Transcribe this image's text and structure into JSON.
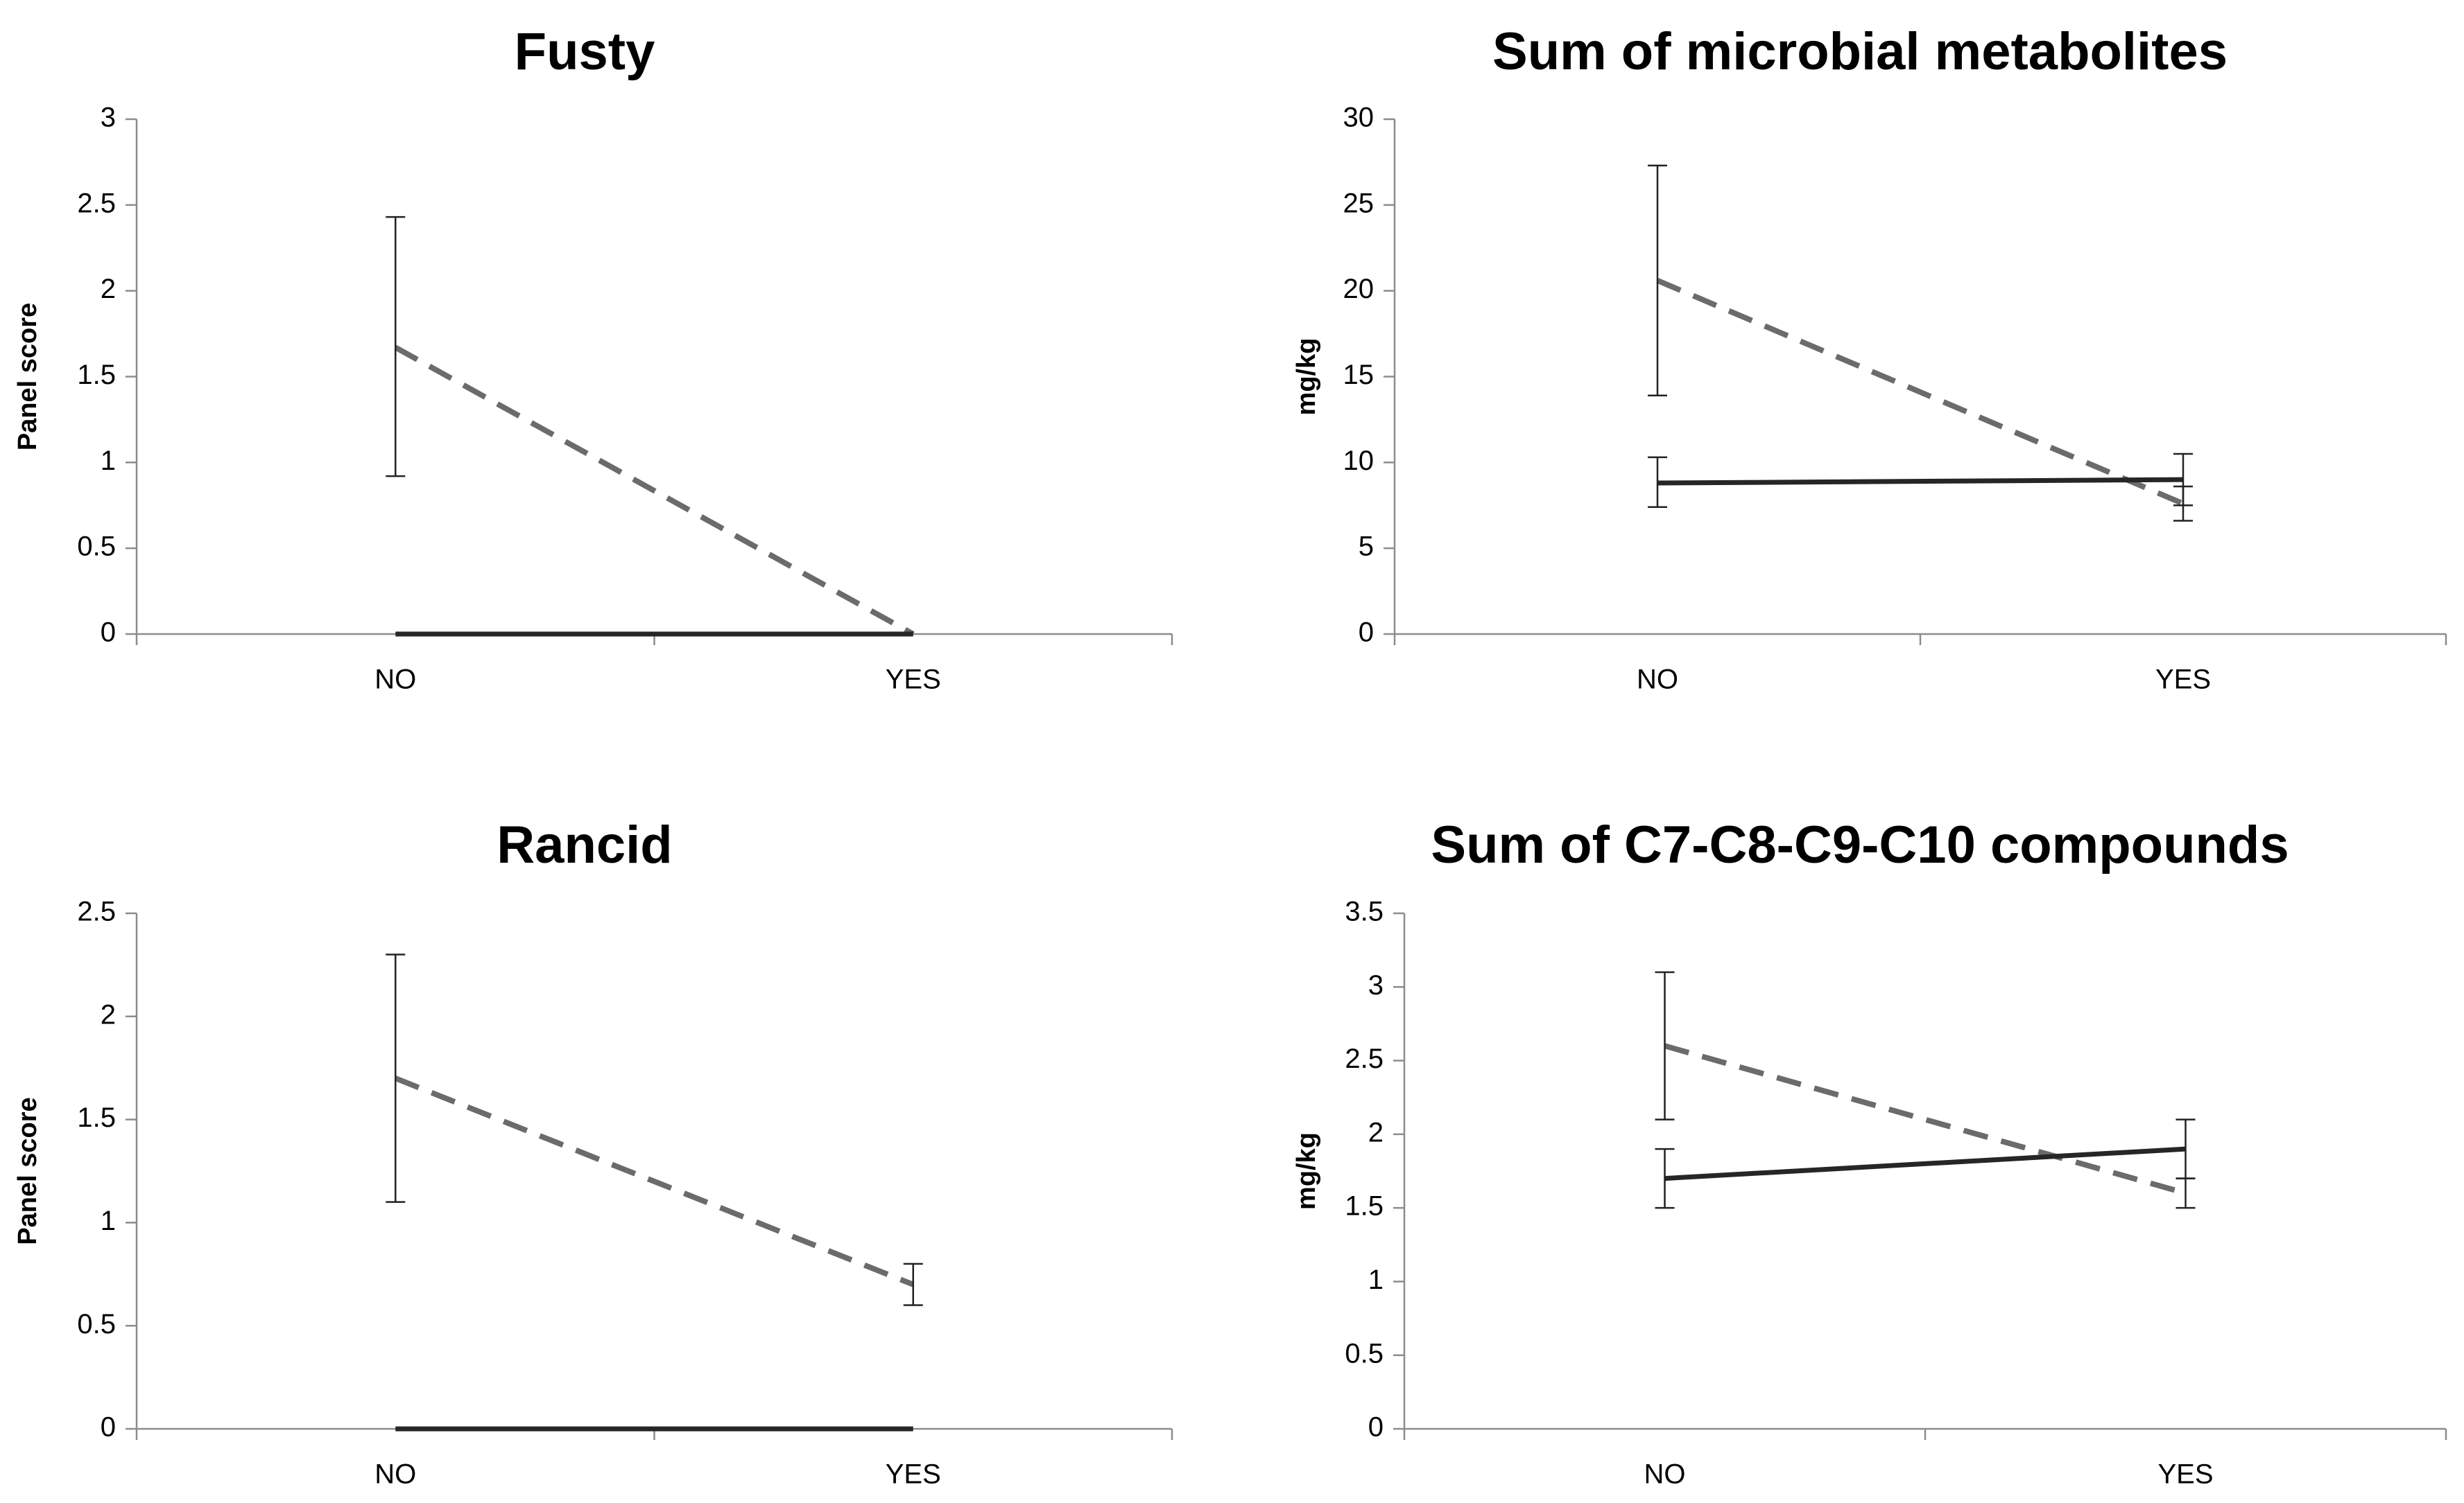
{
  "chart_data": [
    {
      "type": "line",
      "title": "Fusty",
      "ylabel": "Panel score",
      "xlabel": "",
      "categories": [
        "NO",
        "YES"
      ],
      "ylim": [
        0,
        3
      ],
      "yticks": [
        0,
        0.5,
        1,
        1.5,
        2,
        2.5,
        3
      ],
      "series": [
        {
          "name": "dashed",
          "style": "dashed",
          "color": "#6b6b6b",
          "values": [
            1.67,
            0
          ],
          "err_low": [
            0.92,
            null
          ],
          "err_high": [
            2.43,
            null
          ]
        },
        {
          "name": "solid",
          "style": "solid",
          "color": "#262626",
          "values": [
            0,
            0
          ],
          "err_low": [
            null,
            null
          ],
          "err_high": [
            null,
            null
          ]
        }
      ]
    },
    {
      "type": "line",
      "title": "Sum of microbial metabolites",
      "ylabel": "mg/kg",
      "xlabel": "",
      "categories": [
        "NO",
        "YES"
      ],
      "ylim": [
        0,
        30
      ],
      "yticks": [
        0,
        5,
        10,
        15,
        20,
        25,
        30
      ],
      "series": [
        {
          "name": "dashed",
          "style": "dashed",
          "color": "#6b6b6b",
          "values": [
            20.6,
            7.6
          ],
          "err_low": [
            13.9,
            6.6
          ],
          "err_high": [
            27.3,
            8.6
          ]
        },
        {
          "name": "solid",
          "style": "solid",
          "color": "#262626",
          "values": [
            8.8,
            9.0
          ],
          "err_low": [
            7.4,
            7.5
          ],
          "err_high": [
            10.3,
            10.5
          ]
        }
      ]
    },
    {
      "type": "line",
      "title": "Rancid",
      "ylabel": "Panel score",
      "xlabel": "",
      "categories": [
        "NO",
        "YES"
      ],
      "ylim": [
        0,
        2.5
      ],
      "yticks": [
        0,
        0.5,
        1,
        1.5,
        2,
        2.5
      ],
      "series": [
        {
          "name": "dashed",
          "style": "dashed",
          "color": "#6b6b6b",
          "values": [
            1.7,
            0.7
          ],
          "err_low": [
            1.1,
            0.6
          ],
          "err_high": [
            2.3,
            0.8
          ]
        },
        {
          "name": "solid",
          "style": "solid",
          "color": "#262626",
          "values": [
            0,
            0
          ],
          "err_low": [
            null,
            null
          ],
          "err_high": [
            null,
            null
          ]
        }
      ]
    },
    {
      "type": "line",
      "title": "Sum of C7-C8-C9-C10 compounds",
      "ylabel": "mg/kg",
      "xlabel": "",
      "categories": [
        "NO",
        "YES"
      ],
      "ylim": [
        0,
        3.5
      ],
      "yticks": [
        0,
        0.5,
        1,
        1.5,
        2,
        2.5,
        3,
        3.5
      ],
      "series": [
        {
          "name": "dashed",
          "style": "dashed",
          "color": "#6b6b6b",
          "values": [
            2.6,
            1.6
          ],
          "err_low": [
            2.1,
            1.5
          ],
          "err_high": [
            3.1,
            1.7
          ]
        },
        {
          "name": "solid",
          "style": "solid",
          "color": "#262626",
          "values": [
            1.7,
            1.9
          ],
          "err_low": [
            1.5,
            1.7
          ],
          "err_high": [
            1.9,
            2.1
          ]
        }
      ]
    }
  ]
}
